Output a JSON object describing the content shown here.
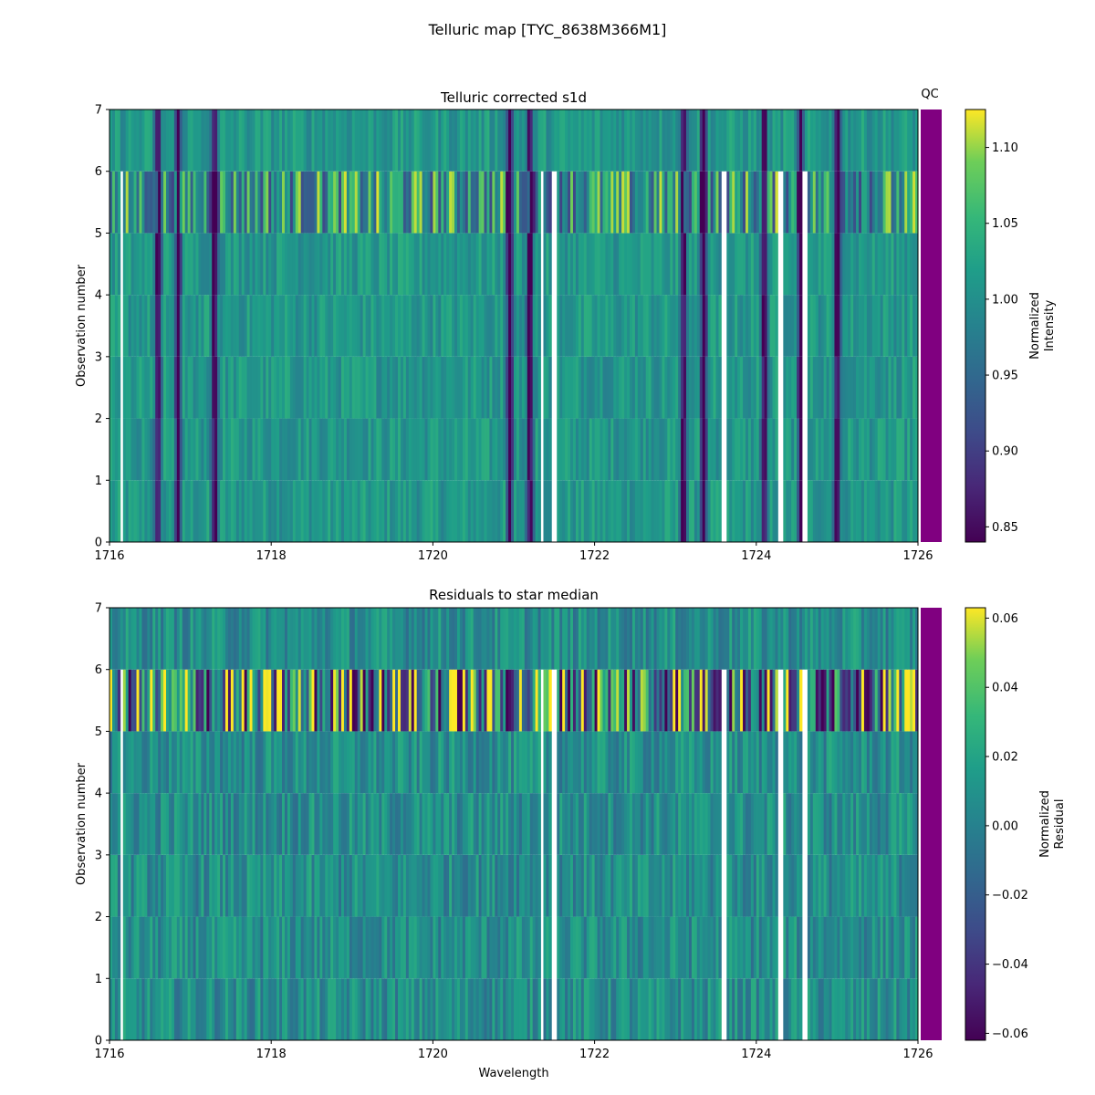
{
  "figure": {
    "title": "Telluric map [TYC_8638M366M1]"
  },
  "chart_data": [
    {
      "type": "heatmap",
      "title": "Telluric corrected s1d",
      "xlabel": "",
      "ylabel": "Observation number",
      "xlim": [
        1716,
        1726
      ],
      "ylim": [
        0,
        7
      ],
      "x_ticks": [
        "1716",
        "1718",
        "1720",
        "1722",
        "1724",
        "1726"
      ],
      "y_ticks": [
        "0",
        "1",
        "2",
        "3",
        "4",
        "5",
        "6",
        "7"
      ],
      "colormap": "viridis",
      "qc_label": "QC",
      "qc_color": "#800080",
      "colorbar": {
        "label_line1": "Normalized",
        "label_line2": "Intensity",
        "range": [
          0.84,
          1.125
        ],
        "ticks": [
          "0.85",
          "0.90",
          "0.95",
          "1.00",
          "1.05",
          "1.10"
        ]
      },
      "rows": 7,
      "absorption_lines_nm": [
        1716.6,
        1716.85,
        1717.3,
        1720.95,
        1721.2,
        1723.1,
        1723.35,
        1724.1,
        1724.55,
        1725.0
      ],
      "gaps_nm": [
        1716.15,
        1721.35,
        1721.5,
        1723.6,
        1724.3,
        1724.6
      ]
    },
    {
      "type": "heatmap",
      "title": "Residuals to star median",
      "xlabel": "Wavelength",
      "ylabel": "Observation number",
      "xlim": [
        1716,
        1726
      ],
      "ylim": [
        0,
        7
      ],
      "x_ticks": [
        "1716",
        "1718",
        "1720",
        "1722",
        "1724",
        "1726"
      ],
      "y_ticks": [
        "0",
        "1",
        "2",
        "3",
        "4",
        "5",
        "6",
        "7"
      ],
      "colormap": "viridis",
      "qc_color": "#800080",
      "colorbar": {
        "label_line1": "Normalized",
        "label_line2": "Residual",
        "range": [
          -0.062,
          0.063
        ],
        "ticks": [
          "0.06",
          "0.04",
          "0.02",
          "0.00",
          "−0.02",
          "−0.04",
          "−0.06"
        ]
      },
      "rows": 7,
      "gaps_nm": [
        1716.15,
        1721.35,
        1721.5,
        1723.6,
        1724.3,
        1724.6
      ]
    }
  ]
}
